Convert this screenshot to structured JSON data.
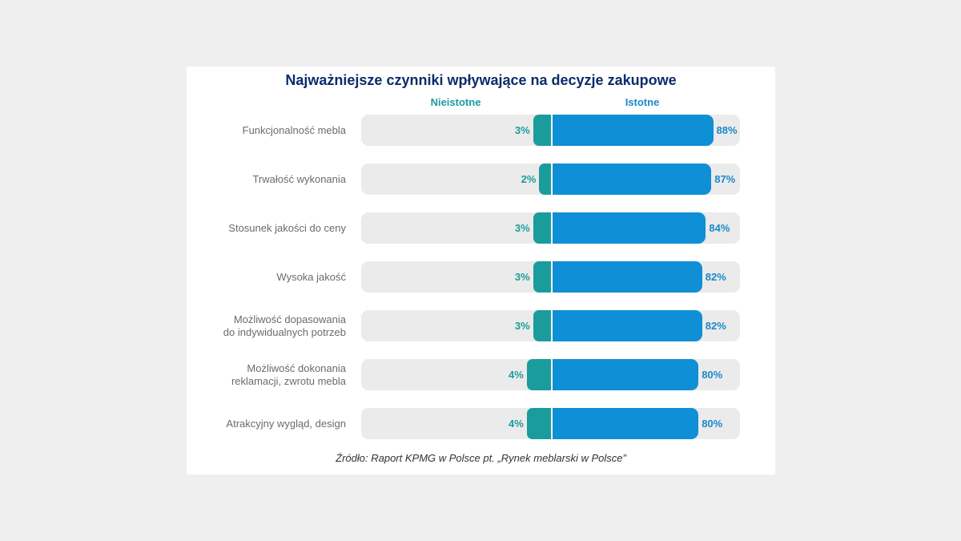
{
  "chart_data": {
    "type": "bar",
    "orientation": "horizontal-diverging",
    "title": "Najważniejsze czynniki wpływające na decyzje zakupowe",
    "legend": {
      "negative": "Nieistotne",
      "positive": "Istotne"
    },
    "categories": [
      [
        "Funkcjonalność mebla"
      ],
      [
        "Trwałość wykonania"
      ],
      [
        "Stosunek jakości do ceny"
      ],
      [
        "Wysoka jakość"
      ],
      [
        "Możliwość dopasowania",
        "do indywidualnych potrzeb"
      ],
      [
        "Możliwość dokonania",
        "reklamacji, zwrotu mebla"
      ],
      [
        "Atrakcyjny wygląd, design"
      ]
    ],
    "series": [
      {
        "name": "Nieistotne",
        "values": [
          3,
          2,
          3,
          3,
          3,
          4,
          4
        ],
        "labels": [
          "3%",
          "2%",
          "3%",
          "3%",
          "3%",
          "4%",
          "4%"
        ]
      },
      {
        "name": "Istotne",
        "values": [
          88,
          87,
          84,
          82,
          82,
          80,
          80
        ],
        "labels": [
          "88%",
          "87%",
          "84%",
          "82%",
          "82%",
          "80%",
          "80%"
        ]
      }
    ],
    "xlim": [
      -10,
      100
    ],
    "source": "Źródło: Raport KPMG w Polsce pt. „Rynek meblarski w Polsce”"
  },
  "colors": {
    "negative": "#1a9c9c",
    "positive": "#0f8fd6",
    "track": "#ebebeb",
    "title": "#0b2b6b"
  }
}
